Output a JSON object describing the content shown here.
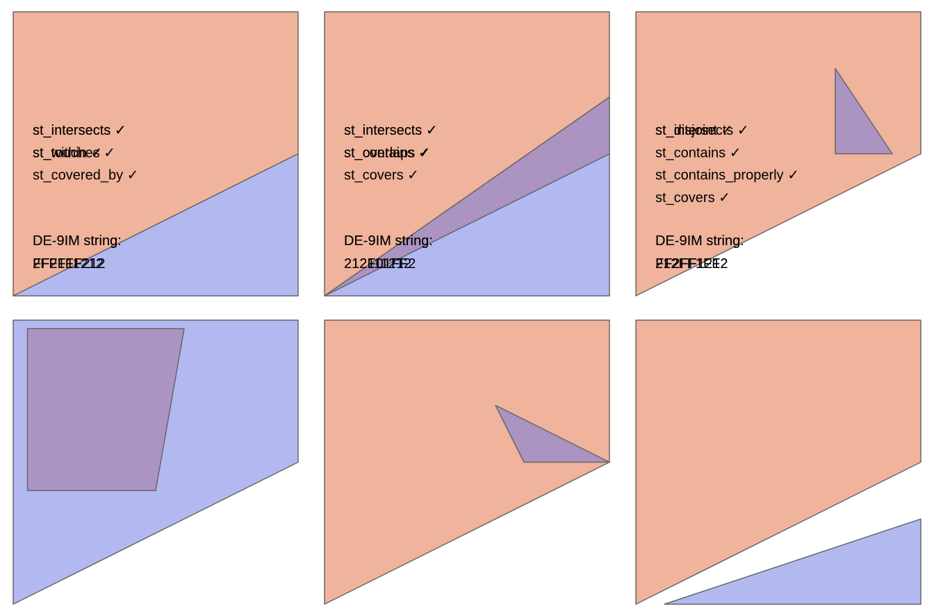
{
  "colors": {
    "shape_x": "#f0b39c",
    "shape_y": "#b2b9f1",
    "overlap": "#ab94c2",
    "stroke": "#666666",
    "text": "#000000"
  },
  "de9im_label": "DE-9IM string:",
  "panels": [
    {
      "predicates": [
        "st_intersects ✓",
        "st_touches ✓"
      ],
      "de9im": "FF2F11212",
      "shapes": [
        {
          "role": "x",
          "fill": "orange",
          "points": [
            [
              0,
              0
            ],
            [
              1,
              0
            ],
            [
              1,
              0.5
            ],
            [
              0,
              1
            ]
          ]
        },
        {
          "role": "y",
          "fill": "blue",
          "points": [
            [
              0,
              1
            ],
            [
              1,
              0.5
            ],
            [
              1,
              1
            ]
          ]
        }
      ]
    },
    {
      "predicates": [
        "st_intersects ✓",
        "st_overlaps ✓"
      ],
      "de9im": "212111212",
      "shapes": [
        {
          "role": "x",
          "fill": "orange",
          "points": [
            [
              0,
              0
            ],
            [
              1,
              0
            ],
            [
              1,
              0.3
            ],
            [
              0,
              1
            ]
          ]
        },
        {
          "role": "y",
          "fill": "blue",
          "points": [
            [
              0,
              1
            ],
            [
              1,
              0.5
            ],
            [
              1,
              1
            ]
          ]
        },
        {
          "role": "overlap",
          "fill": "purple",
          "points": [
            [
              0,
              1
            ],
            [
              1,
              0.3
            ],
            [
              1,
              0.5
            ]
          ]
        }
      ]
    },
    {
      "predicates": [
        "st_intersects ✓",
        "st_contains ✓",
        "st_contains_properly ✓",
        "st_covers ✓"
      ],
      "de9im": "212FF1FF2",
      "shapes": [
        {
          "role": "x",
          "fill": "orange",
          "points": [
            [
              0,
              0
            ],
            [
              1,
              0
            ],
            [
              1,
              0.5
            ],
            [
              0,
              1
            ]
          ]
        },
        {
          "role": "overlap",
          "fill": "purple",
          "points": [
            [
              0.7,
              0.2
            ],
            [
              0.9,
              0.5
            ],
            [
              0.7,
              0.5
            ]
          ]
        }
      ]
    },
    {
      "predicates": [
        "st_intersects ✓",
        "st_within ✓",
        "st_covered_by ✓"
      ],
      "de9im": "2FF1FF212",
      "shapes": [
        {
          "role": "y",
          "fill": "blue",
          "points": [
            [
              0,
              0
            ],
            [
              1,
              0
            ],
            [
              1,
              0.5
            ],
            [
              0,
              1
            ]
          ]
        },
        {
          "role": "overlap",
          "fill": "purple",
          "points": [
            [
              0.05,
              0.03
            ],
            [
              0.6,
              0.03
            ],
            [
              0.5,
              0.6
            ],
            [
              0.05,
              0.6
            ]
          ]
        }
      ]
    },
    {
      "predicates": [
        "st_intersects ✓",
        "st_contains ✓",
        "st_covers ✓"
      ],
      "de9im": "212F01FF2",
      "shapes": [
        {
          "role": "x",
          "fill": "orange",
          "points": [
            [
              0,
              0
            ],
            [
              1,
              0
            ],
            [
              1,
              0.5
            ],
            [
              0,
              1
            ]
          ]
        },
        {
          "role": "overlap",
          "fill": "purple",
          "points": [
            [
              0.6,
              0.3
            ],
            [
              1,
              0.5
            ],
            [
              0.7,
              0.5
            ]
          ]
        }
      ]
    },
    {
      "predicates": [
        "st_disjoint ✓"
      ],
      "de9im": "FF2FF1212",
      "shapes": [
        {
          "role": "x",
          "fill": "orange",
          "points": [
            [
              0,
              0
            ],
            [
              1,
              0
            ],
            [
              1,
              0.5
            ],
            [
              0,
              1
            ]
          ]
        },
        {
          "role": "y",
          "fill": "blue",
          "points": [
            [
              0.1,
              1
            ],
            [
              1,
              0.7
            ],
            [
              1,
              1
            ]
          ]
        }
      ]
    }
  ]
}
